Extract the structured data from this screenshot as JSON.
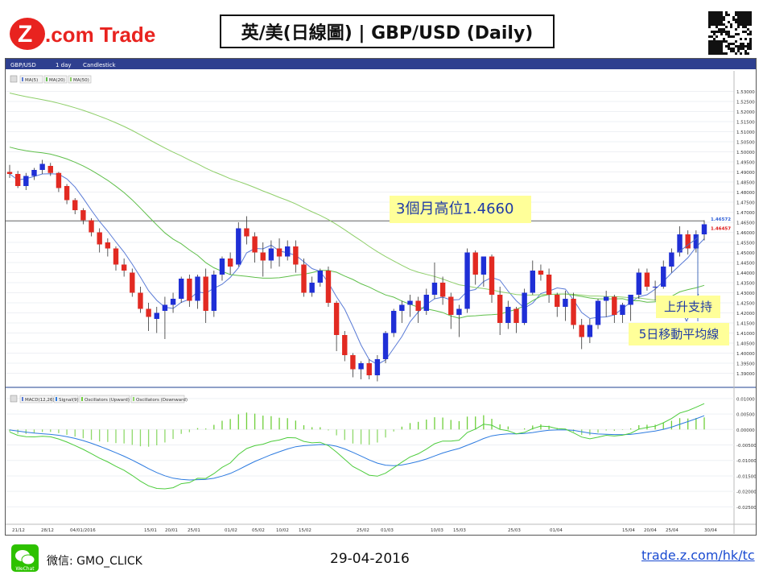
{
  "brand": {
    "logo_text": "Z.com Trade",
    "logo_color": "#e8231f"
  },
  "header": {
    "title": "英/美(日線圖) | GBP/USD  (Daily)"
  },
  "toolbar": {
    "symbol": "GBP/USD",
    "timeframe": "1 day",
    "chart_style": "Candlestick"
  },
  "legend_price": [
    "MA(5)",
    "MA(20)",
    "MA(50)"
  ],
  "legend_macd": [
    "MACD(12,26)",
    "Signal(9)",
    "Oscillators (Upward)",
    "Oscillators (Downward)"
  ],
  "price_labels": {
    "level_a": "1.46572",
    "level_b": "1.46457"
  },
  "annotations": {
    "three_month_high": "3個月高位1.4660",
    "support": "上升支持",
    "ma5": "5日移動平均線"
  },
  "footer": {
    "wechat": "微信: GMO_CLICK",
    "date": "29-04-2016",
    "link": "trade.z.com/hk/tc",
    "wechat_badge": "WeChat"
  },
  "colors": {
    "up": "#1f2fd6",
    "down": "#e22a22",
    "ma5": "#5a7bd6",
    "ma20": "#5fbf4a",
    "ma50": "#8fcf6a",
    "macd": "#2d7be0",
    "signal": "#4dcc3c",
    "osc_up": "#6fcf3a",
    "osc_down": "#8fd96a",
    "hline": "#666666"
  },
  "chart_data": {
    "type": "candlestick",
    "x_tick_labels": [
      "21/12",
      "28/12",
      "04/01/2016",
      "15/01",
      "20/01",
      "25/01",
      "01/02",
      "05/02",
      "10/02",
      "15/02",
      "25/02",
      "01/03",
      "10/03",
      "15/03",
      "25/03",
      "01/04",
      "15/04",
      "20/04",
      "25/04",
      "30/04"
    ],
    "y_ticks": [
      "1.53000",
      "1.52500",
      "1.52000",
      "1.51500",
      "1.51000",
      "1.50500",
      "1.50000",
      "1.49500",
      "1.49000",
      "1.48500",
      "1.48000",
      "1.47500",
      "1.47000",
      "1.46500",
      "1.46000",
      "1.45500",
      "1.45000",
      "1.44500",
      "1.44000",
      "1.43500",
      "1.43000",
      "1.42500",
      "1.42000",
      "1.41500",
      "1.41000",
      "1.40500",
      "1.40000",
      "1.39500",
      "1.39000"
    ],
    "y_range": [
      1.385,
      1.535
    ],
    "horizontal_line": 1.4657,
    "ohlc": [
      [
        1.49,
        1.4935,
        1.487,
        1.489
      ],
      [
        1.489,
        1.4905,
        1.482,
        1.483
      ],
      [
        1.483,
        1.4895,
        1.481,
        1.488
      ],
      [
        1.488,
        1.492,
        1.486,
        1.491
      ],
      [
        1.491,
        1.496,
        1.489,
        1.494
      ],
      [
        1.493,
        1.4945,
        1.488,
        1.4895
      ],
      [
        1.4895,
        1.49,
        1.48,
        1.482
      ],
      [
        1.483,
        1.484,
        1.474,
        1.476
      ],
      [
        1.476,
        1.477,
        1.469,
        1.471
      ],
      [
        1.471,
        1.472,
        1.464,
        1.466
      ],
      [
        1.466,
        1.467,
        1.458,
        1.46
      ],
      [
        1.46,
        1.462,
        1.45,
        1.454
      ],
      [
        1.455,
        1.457,
        1.448,
        1.452
      ],
      [
        1.452,
        1.453,
        1.441,
        1.444
      ],
      [
        1.444,
        1.447,
        1.438,
        1.441
      ],
      [
        1.44,
        1.442,
        1.428,
        1.43
      ],
      [
        1.43,
        1.433,
        1.42,
        1.422
      ],
      [
        1.422,
        1.425,
        1.411,
        1.418
      ],
      [
        1.417,
        1.423,
        1.41,
        1.42
      ],
      [
        1.421,
        1.428,
        1.407,
        1.424
      ],
      [
        1.424,
        1.43,
        1.42,
        1.427
      ],
      [
        1.427,
        1.438,
        1.425,
        1.437
      ],
      [
        1.437,
        1.439,
        1.423,
        1.426
      ],
      [
        1.426,
        1.439,
        1.422,
        1.438
      ],
      [
        1.438,
        1.442,
        1.415,
        1.421
      ],
      [
        1.421,
        1.441,
        1.418,
        1.439
      ],
      [
        1.439,
        1.448,
        1.436,
        1.447
      ],
      [
        1.447,
        1.45,
        1.439,
        1.443
      ],
      [
        1.444,
        1.465,
        1.443,
        1.462
      ],
      [
        1.462,
        1.468,
        1.454,
        1.458
      ],
      [
        1.458,
        1.46,
        1.445,
        1.45
      ],
      [
        1.45,
        1.455,
        1.438,
        1.446
      ],
      [
        1.446,
        1.456,
        1.442,
        1.452
      ],
      [
        1.452,
        1.457,
        1.443,
        1.448
      ],
      [
        1.448,
        1.456,
        1.446,
        1.453
      ],
      [
        1.453,
        1.456,
        1.44,
        1.444
      ],
      [
        1.444,
        1.447,
        1.428,
        1.43
      ],
      [
        1.43,
        1.438,
        1.428,
        1.435
      ],
      [
        1.435,
        1.442,
        1.433,
        1.441
      ],
      [
        1.441,
        1.443,
        1.423,
        1.425
      ],
      [
        1.425,
        1.426,
        1.401,
        1.409
      ],
      [
        1.409,
        1.411,
        1.396,
        1.399
      ],
      [
        1.399,
        1.4,
        1.388,
        1.392
      ],
      [
        1.392,
        1.396,
        1.387,
        1.395
      ],
      [
        1.395,
        1.397,
        1.387,
        1.389
      ],
      [
        1.389,
        1.399,
        1.386,
        1.397
      ],
      [
        1.397,
        1.411,
        1.395,
        1.41
      ],
      [
        1.41,
        1.422,
        1.408,
        1.421
      ],
      [
        1.421,
        1.426,
        1.415,
        1.424
      ],
      [
        1.424,
        1.429,
        1.418,
        1.426
      ],
      [
        1.426,
        1.428,
        1.415,
        1.421
      ],
      [
        1.421,
        1.432,
        1.419,
        1.429
      ],
      [
        1.429,
        1.445,
        1.427,
        1.435
      ],
      [
        1.435,
        1.438,
        1.424,
        1.428
      ],
      [
        1.428,
        1.43,
        1.412,
        1.419
      ],
      [
        1.419,
        1.424,
        1.408,
        1.422
      ],
      [
        1.422,
        1.452,
        1.42,
        1.45
      ],
      [
        1.45,
        1.451,
        1.434,
        1.439
      ],
      [
        1.439,
        1.448,
        1.433,
        1.448
      ],
      [
        1.448,
        1.449,
        1.425,
        1.429
      ],
      [
        1.429,
        1.433,
        1.409,
        1.415
      ],
      [
        1.415,
        1.426,
        1.412,
        1.423
      ],
      [
        1.422,
        1.423,
        1.41,
        1.415
      ],
      [
        1.415,
        1.432,
        1.414,
        1.43
      ],
      [
        1.43,
        1.446,
        1.429,
        1.441
      ],
      [
        1.441,
        1.444,
        1.436,
        1.439
      ],
      [
        1.439,
        1.442,
        1.425,
        1.429
      ],
      [
        1.429,
        1.43,
        1.418,
        1.423
      ],
      [
        1.423,
        1.431,
        1.416,
        1.427
      ],
      [
        1.427,
        1.43,
        1.412,
        1.414
      ],
      [
        1.414,
        1.417,
        1.402,
        1.408
      ],
      [
        1.408,
        1.417,
        1.405,
        1.414
      ],
      [
        1.414,
        1.427,
        1.412,
        1.426
      ],
      [
        1.426,
        1.431,
        1.418,
        1.428
      ],
      [
        1.428,
        1.429,
        1.415,
        1.419
      ],
      [
        1.419,
        1.425,
        1.415,
        1.424
      ],
      [
        1.424,
        1.429,
        1.416,
        1.429
      ],
      [
        1.429,
        1.442,
        1.427,
        1.44
      ],
      [
        1.44,
        1.442,
        1.431,
        1.433
      ],
      [
        1.433,
        1.436,
        1.426,
        1.433
      ],
      [
        1.433,
        1.446,
        1.432,
        1.443
      ],
      [
        1.443,
        1.452,
        1.44,
        1.45
      ],
      [
        1.45,
        1.463,
        1.448,
        1.459
      ],
      [
        1.459,
        1.461,
        1.449,
        1.452
      ],
      [
        1.452,
        1.461,
        1.45,
        1.459
      ],
      [
        1.459,
        1.466,
        1.456,
        1.464
      ]
    ],
    "macd": {
      "y_ticks": [
        "0.01000",
        "0.00500",
        "0.00000",
        "-0.00500",
        "-0.01000",
        "-0.01500",
        "-0.02000",
        "-0.02500"
      ],
      "y_range": [
        -0.0275,
        0.011
      ]
    }
  }
}
